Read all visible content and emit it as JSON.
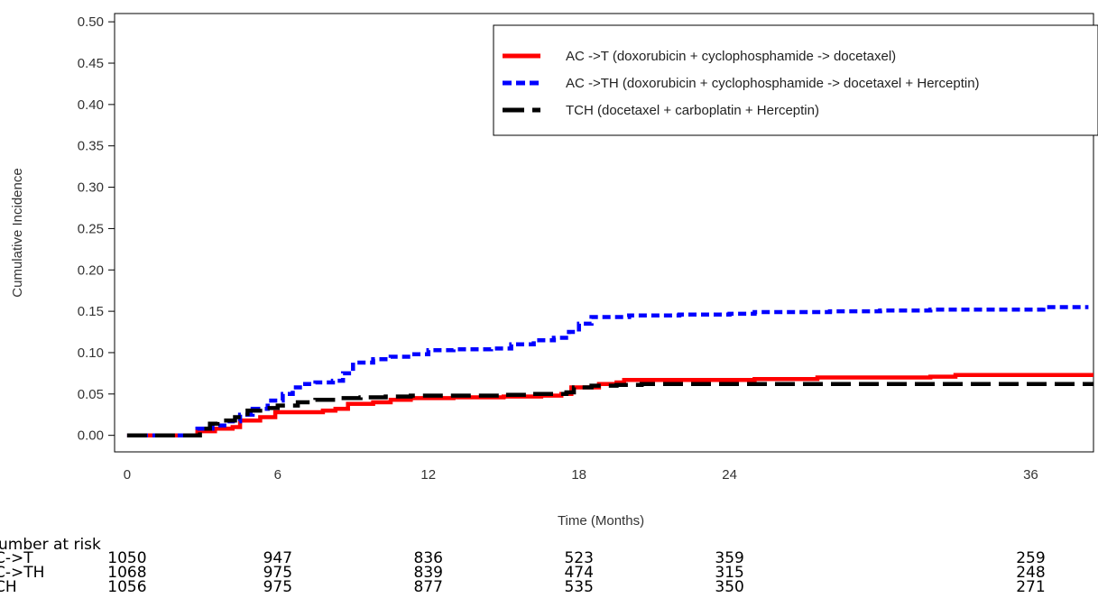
{
  "chart_data": {
    "type": "line",
    "xlabel": "Time (Months)",
    "ylabel": "Cumulative Incidence",
    "xlim": [
      -0.5,
      38.5
    ],
    "ylim": [
      -0.02,
      0.51
    ],
    "x_ticks": [
      0,
      6,
      12,
      18,
      24,
      36
    ],
    "y_ticks": [
      0.0,
      0.05,
      0.1,
      0.15,
      0.2,
      0.25,
      0.3,
      0.35,
      0.4,
      0.45,
      0.5
    ],
    "y_tick_labels": [
      "0.00",
      "0.05",
      "0.10",
      "0.15",
      "0.20",
      "0.25",
      "0.30",
      "0.35",
      "0.40",
      "0.45",
      "0.50"
    ],
    "legend_position": "top-right",
    "series": [
      {
        "name": "AC ->T (doxorubicin + cyclophosphamide -> docetaxel)",
        "color": "#ff0000",
        "style": "solid",
        "points": [
          [
            0,
            0
          ],
          [
            2.6,
            0
          ],
          [
            2.8,
            0.005
          ],
          [
            3.5,
            0.008
          ],
          [
            4.2,
            0.01
          ],
          [
            4.5,
            0.018
          ],
          [
            5.3,
            0.022
          ],
          [
            5.9,
            0.028
          ],
          [
            7.0,
            0.028
          ],
          [
            7.8,
            0.03
          ],
          [
            8.3,
            0.032
          ],
          [
            8.8,
            0.038
          ],
          [
            9.8,
            0.04
          ],
          [
            10.5,
            0.043
          ],
          [
            11.3,
            0.045
          ],
          [
            13.0,
            0.046
          ],
          [
            15.0,
            0.047
          ],
          [
            16.5,
            0.048
          ],
          [
            17.3,
            0.05
          ],
          [
            17.7,
            0.058
          ],
          [
            18.8,
            0.062
          ],
          [
            19.5,
            0.064
          ],
          [
            19.8,
            0.067
          ],
          [
            22.0,
            0.067
          ],
          [
            25.0,
            0.068
          ],
          [
            27.5,
            0.07
          ],
          [
            30.0,
            0.07
          ],
          [
            32.0,
            0.071
          ],
          [
            33.0,
            0.073
          ],
          [
            35.0,
            0.073
          ],
          [
            38.5,
            0.073
          ]
        ]
      },
      {
        "name": "AC ->TH (doxorubicin + cyclophosphamide -> docetaxel + Herceptin)",
        "color": "#0000ff",
        "style": "dotted",
        "points": [
          [
            0,
            0
          ],
          [
            2.5,
            0
          ],
          [
            2.8,
            0.008
          ],
          [
            3.4,
            0.012
          ],
          [
            4.0,
            0.017
          ],
          [
            4.5,
            0.025
          ],
          [
            5.0,
            0.032
          ],
          [
            5.6,
            0.042
          ],
          [
            6.2,
            0.05
          ],
          [
            6.6,
            0.058
          ],
          [
            7.0,
            0.062
          ],
          [
            7.5,
            0.064
          ],
          [
            8.2,
            0.066
          ],
          [
            8.6,
            0.075
          ],
          [
            9.0,
            0.088
          ],
          [
            9.8,
            0.092
          ],
          [
            10.5,
            0.095
          ],
          [
            11.3,
            0.098
          ],
          [
            12.0,
            0.103
          ],
          [
            13.0,
            0.104
          ],
          [
            14.5,
            0.105
          ],
          [
            15.3,
            0.11
          ],
          [
            16.2,
            0.115
          ],
          [
            17.0,
            0.118
          ],
          [
            17.6,
            0.125
          ],
          [
            18.0,
            0.135
          ],
          [
            18.5,
            0.143
          ],
          [
            20.0,
            0.145
          ],
          [
            22.0,
            0.146
          ],
          [
            24.0,
            0.147
          ],
          [
            25.0,
            0.149
          ],
          [
            28.0,
            0.15
          ],
          [
            30.0,
            0.151
          ],
          [
            32.0,
            0.152
          ],
          [
            35.5,
            0.152
          ],
          [
            36.5,
            0.155
          ],
          [
            38.3,
            0.155
          ]
        ]
      },
      {
        "name": "TCH (docetaxel + carboplatin + Herceptin)",
        "color": "#000000",
        "style": "dashed",
        "points": [
          [
            0,
            0
          ],
          [
            2.5,
            0
          ],
          [
            2.9,
            0.008
          ],
          [
            3.3,
            0.014
          ],
          [
            3.6,
            0.018
          ],
          [
            4.3,
            0.022
          ],
          [
            4.8,
            0.03
          ],
          [
            5.3,
            0.033
          ],
          [
            6.0,
            0.036
          ],
          [
            6.8,
            0.04
          ],
          [
            7.5,
            0.043
          ],
          [
            8.5,
            0.045
          ],
          [
            9.3,
            0.046
          ],
          [
            10.3,
            0.047
          ],
          [
            11.3,
            0.048
          ],
          [
            13.0,
            0.048
          ],
          [
            15.0,
            0.049
          ],
          [
            16.0,
            0.05
          ],
          [
            17.5,
            0.052
          ],
          [
            17.8,
            0.058
          ],
          [
            18.5,
            0.06
          ],
          [
            19.5,
            0.061
          ],
          [
            20.5,
            0.062
          ],
          [
            23.0,
            0.062
          ],
          [
            28.0,
            0.062
          ],
          [
            33.0,
            0.062
          ],
          [
            38.5,
            0.062
          ]
        ]
      }
    ]
  },
  "risk_table": {
    "title": "umber at risk",
    "rows": [
      {
        "label": "C->T",
        "values": [
          "1050",
          "947",
          "836",
          "523",
          "359",
          "259"
        ]
      },
      {
        "label": "C->TH",
        "values": [
          "1068",
          "975",
          "839",
          "474",
          "315",
          "248"
        ]
      },
      {
        "label": "CH",
        "values": [
          "1056",
          "975",
          "877",
          "535",
          "350",
          "271"
        ]
      }
    ]
  }
}
